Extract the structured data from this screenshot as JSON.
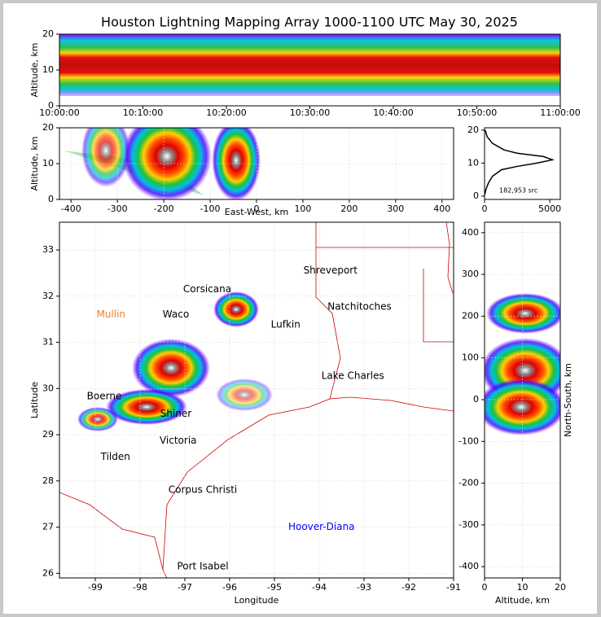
{
  "chart_data": [
    {
      "type": "density-time",
      "title": "Houston Lightning Mapping Array 1000-1100 UTC May 30, 2025",
      "ylabel": "Altitude, km",
      "categories": [
        "10:00:00",
        "10:10:00",
        "10:20:00",
        "10:30:00",
        "10:40:00",
        "10:50:00",
        "11:00:00"
      ],
      "ylim": [
        0,
        20
      ],
      "yticks": [
        0,
        10,
        20
      ]
    },
    {
      "type": "density",
      "xlabel": "East-West, km",
      "ylabel": "Altitude, km",
      "xlim": [
        -425,
        425
      ],
      "xticks": [
        -400,
        -300,
        -200,
        -100,
        0,
        100,
        200,
        300,
        400
      ],
      "ylim": [
        0,
        20
      ],
      "yticks": [
        0,
        10,
        20
      ],
      "grid": true
    },
    {
      "type": "profile",
      "annotation": "182,953 src",
      "xlim": [
        0,
        5800
      ],
      "xticks": [
        0,
        5000
      ],
      "ylim": [
        -1,
        20.7
      ],
      "yticks": [
        0,
        10,
        20
      ],
      "y": [
        0.5,
        2,
        4,
        6,
        8,
        9,
        10,
        11,
        12,
        13,
        14,
        16,
        18,
        20
      ],
      "values": [
        20,
        100,
        300,
        600,
        1300,
        2500,
        4000,
        5200,
        4500,
        2500,
        1500,
        600,
        200,
        50
      ],
      "color": "#000000"
    },
    {
      "type": "map",
      "xlabel": "Longitude",
      "ylabel": "Latitude",
      "xlim": [
        -99.8,
        -91
      ],
      "xticks": [
        -99,
        -98,
        -97,
        -96,
        -95,
        -94,
        -93,
        -92,
        -91
      ],
      "ylim": [
        25.9,
        33.6
      ],
      "yticks": [
        26,
        27,
        28,
        29,
        30,
        31,
        32,
        33
      ],
      "grid": true,
      "labels": [
        {
          "text": "Shreveport",
          "lon": -93.75,
          "lat": 32.55,
          "color": "#000000"
        },
        {
          "text": "Corsicana",
          "lon": -96.5,
          "lat": 32.15,
          "color": "#000000"
        },
        {
          "text": "Mullin",
          "lon": -98.65,
          "lat": 31.6,
          "color": "#f08030"
        },
        {
          "text": "Waco",
          "lon": -97.2,
          "lat": 31.6,
          "color": "#000000"
        },
        {
          "text": "Natchitoches",
          "lon": -93.1,
          "lat": 31.77,
          "color": "#000000"
        },
        {
          "text": "Lufkin",
          "lon": -94.75,
          "lat": 31.38,
          "color": "#000000"
        },
        {
          "text": "Lake Charles",
          "lon": -93.25,
          "lat": 30.27,
          "color": "#000000"
        },
        {
          "text": "Boerne",
          "lon": -98.8,
          "lat": 29.83,
          "color": "#000000"
        },
        {
          "text": "Shiner",
          "lon": -97.2,
          "lat": 29.45,
          "color": "#000000"
        },
        {
          "text": "Victoria",
          "lon": -97.15,
          "lat": 28.87,
          "color": "#000000"
        },
        {
          "text": "Tilden",
          "lon": -98.55,
          "lat": 28.52,
          "color": "#000000"
        },
        {
          "text": "Corpus Christi",
          "lon": -96.6,
          "lat": 27.8,
          "color": "#000000"
        },
        {
          "text": "Hoover-Diana",
          "lon": -93.95,
          "lat": 27.0,
          "color": "#0000ff"
        },
        {
          "text": "Port Isabel",
          "lon": -96.6,
          "lat": 26.15,
          "color": "#000000"
        }
      ]
    },
    {
      "type": "density-side",
      "xlabel": "Altitude, km",
      "ylabel": "North-South, km",
      "xlim": [
        0,
        20
      ],
      "xticks": [
        0,
        10,
        20
      ],
      "ylim": [
        -427,
        425
      ],
      "yticks": [
        -400,
        -300,
        -200,
        -100,
        0,
        100,
        200,
        300,
        400
      ],
      "grid": true
    }
  ]
}
